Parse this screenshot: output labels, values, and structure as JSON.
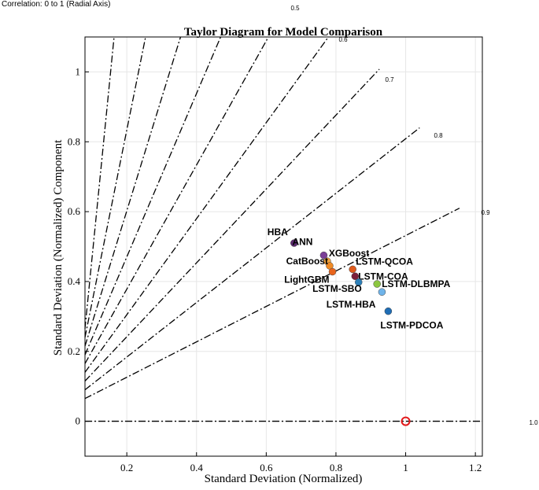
{
  "note": "Correlation: 0 to 1 (Radial Axis)",
  "chart_data": {
    "type": "scatter",
    "title": "Taylor Diagram for Model Comparison",
    "xlabel": "Standard Deviation (Normalized)",
    "ylabel": "Standard Deviation (Normalized) Component",
    "xlim": [
      0.08,
      1.22
    ],
    "ylim": [
      -0.1,
      1.1
    ],
    "xticks": [
      {
        "value": 0.2,
        "label": "0.2"
      },
      {
        "value": 0.4,
        "label": "0.4"
      },
      {
        "value": 0.6,
        "label": "0.6"
      },
      {
        "value": 0.8,
        "label": "0.8"
      },
      {
        "value": 1.0,
        "label": "1"
      },
      {
        "value": 1.2,
        "label": "1.2"
      }
    ],
    "yticks": [
      {
        "value": 0,
        "label": "0"
      },
      {
        "value": 0.2,
        "label": "0.2"
      },
      {
        "value": 0.4,
        "label": "0.4"
      },
      {
        "value": 0.6,
        "label": "0.6"
      },
      {
        "value": 0.8,
        "label": "0.8"
      },
      {
        "value": 1.0,
        "label": "1"
      }
    ],
    "grid": true,
    "correlation_lines": [
      0.1,
      0.2,
      0.3,
      0.4,
      0.5,
      0.6,
      0.7,
      0.8,
      0.9,
      1.0
    ],
    "correlation_labels": [
      {
        "corr": 0.5,
        "label": "0.5"
      },
      {
        "corr": 0.6,
        "label": "0.6"
      },
      {
        "corr": 0.7,
        "label": "0.7"
      },
      {
        "corr": 0.8,
        "label": "0.8"
      },
      {
        "corr": 0.9,
        "label": "0.9"
      },
      {
        "corr": 1.0,
        "label": "1.0"
      }
    ],
    "reference": {
      "x": 1.0,
      "y": 0.0,
      "color": "#e31a1c"
    },
    "points": [
      {
        "name": "HBA",
        "x": 0.68,
        "y": 0.51,
        "color": "#5b2a6e"
      },
      {
        "name": "ANN",
        "x": 0.765,
        "y": 0.475,
        "color": "#7b3f98"
      },
      {
        "name": "XGBoost",
        "x": 0.775,
        "y": 0.458,
        "color": "#f4a640"
      },
      {
        "name": "CatBoost",
        "x": 0.782,
        "y": 0.445,
        "color": "#f08a24"
      },
      {
        "name": "LightGBM",
        "x": 0.79,
        "y": 0.428,
        "color": "#e8641c"
      },
      {
        "name": "LSTM-QCOA",
        "x": 0.848,
        "y": 0.435,
        "color": "#e05a1a"
      },
      {
        "name": "LSTM-COA",
        "x": 0.855,
        "y": 0.415,
        "color": "#7a1f3a"
      },
      {
        "name": "LSTM-SBO",
        "x": 0.865,
        "y": 0.398,
        "color": "#2c7fb8"
      },
      {
        "name": "LSTM-DLBMPA",
        "x": 0.918,
        "y": 0.393,
        "color": "#8cc63f"
      },
      {
        "name": "LSTM-HBA",
        "x": 0.932,
        "y": 0.37,
        "color": "#6fb4ea"
      },
      {
        "name": "LSTM-PDCOA",
        "x": 0.95,
        "y": 0.315,
        "color": "#1f6db5"
      }
    ]
  }
}
